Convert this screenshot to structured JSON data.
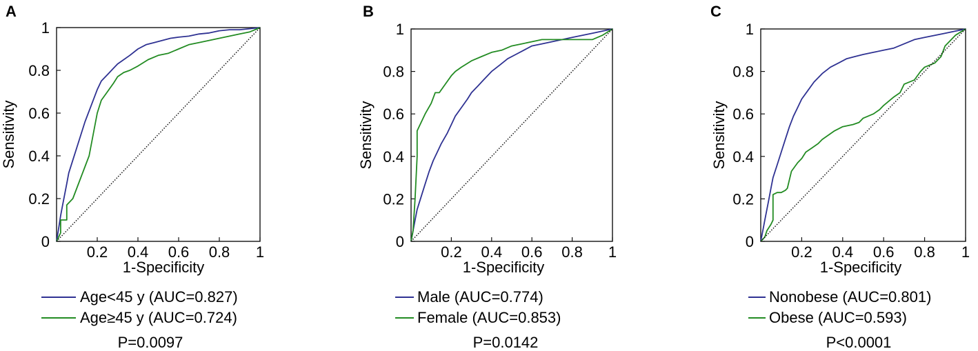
{
  "chart_data": [
    {
      "type": "line",
      "panel_label": "A",
      "xlabel": "1-Specificity",
      "ylabel": "Sensitivity",
      "xlim": [
        0,
        1
      ],
      "ylim": [
        0,
        1
      ],
      "x_ticks": [
        "0.2",
        "0.4",
        "0.6",
        "0.8",
        "1"
      ],
      "y_ticks": [
        "0",
        "0.2",
        "0.4",
        "0.6",
        "0.8",
        "1"
      ],
      "grid": false,
      "legend_position": "bottom",
      "series": [
        {
          "name": "Age<45 y (AUC=0.827)",
          "color": "#2e3192",
          "x": [
            0,
            0.01,
            0.02,
            0.03,
            0.04,
            0.05,
            0.06,
            0.08,
            0.1,
            0.12,
            0.14,
            0.16,
            0.18,
            0.2,
            0.22,
            0.25,
            0.28,
            0.3,
            0.33,
            0.36,
            0.4,
            0.44,
            0.48,
            0.52,
            0.56,
            0.6,
            0.65,
            0.7,
            0.75,
            0.8,
            0.85,
            0.9,
            0.95,
            1.0
          ],
          "y": [
            0,
            0.06,
            0.12,
            0.17,
            0.22,
            0.27,
            0.32,
            0.38,
            0.44,
            0.5,
            0.56,
            0.61,
            0.66,
            0.71,
            0.75,
            0.78,
            0.81,
            0.83,
            0.85,
            0.87,
            0.9,
            0.92,
            0.93,
            0.94,
            0.95,
            0.955,
            0.96,
            0.97,
            0.975,
            0.985,
            0.99,
            0.99,
            0.995,
            1.0
          ]
        },
        {
          "name": "Age≥45 y (AUC=0.724)",
          "color": "#228b22",
          "x": [
            0,
            0.02,
            0.02,
            0.05,
            0.05,
            0.08,
            0.1,
            0.12,
            0.14,
            0.16,
            0.18,
            0.2,
            0.22,
            0.25,
            0.28,
            0.3,
            0.33,
            0.36,
            0.4,
            0.45,
            0.5,
            0.55,
            0.6,
            0.65,
            0.7,
            0.75,
            0.8,
            0.85,
            0.9,
            0.95,
            1.0
          ],
          "y": [
            0,
            0.04,
            0.1,
            0.1,
            0.17,
            0.2,
            0.25,
            0.3,
            0.35,
            0.4,
            0.5,
            0.6,
            0.66,
            0.7,
            0.74,
            0.77,
            0.79,
            0.8,
            0.82,
            0.85,
            0.87,
            0.88,
            0.9,
            0.92,
            0.93,
            0.94,
            0.95,
            0.96,
            0.97,
            0.98,
            1.0
          ]
        },
        {
          "name": "chance",
          "color": "#111111",
          "dashed": true,
          "x": [
            0,
            1
          ],
          "y": [
            0,
            1
          ]
        }
      ],
      "legend": {
        "entries": [
          "Age<45 y (AUC=0.827)",
          "Age≥45 y (AUC=0.724)"
        ],
        "p_value": "P=0.0097"
      }
    },
    {
      "type": "line",
      "panel_label": "B",
      "xlabel": "1-Specificity",
      "ylabel": "Sensitivity",
      "xlim": [
        0,
        1
      ],
      "ylim": [
        0,
        1
      ],
      "x_ticks": [
        "0.2",
        "0.4",
        "0.6",
        "0.8",
        "1"
      ],
      "y_ticks": [
        "0",
        "0.2",
        "0.4",
        "0.6",
        "0.8",
        "1"
      ],
      "grid": false,
      "legend_position": "bottom",
      "series": [
        {
          "name": "Male (AUC=0.774)",
          "color": "#2e3192",
          "x": [
            0,
            0.01,
            0.02,
            0.03,
            0.05,
            0.07,
            0.09,
            0.11,
            0.13,
            0.15,
            0.18,
            0.2,
            0.22,
            0.25,
            0.28,
            0.3,
            0.33,
            0.36,
            0.4,
            0.44,
            0.48,
            0.52,
            0.56,
            0.6,
            0.65,
            0.7,
            0.75,
            0.8,
            0.85,
            0.9,
            0.95,
            1.0
          ],
          "y": [
            0,
            0.05,
            0.1,
            0.15,
            0.21,
            0.27,
            0.33,
            0.38,
            0.42,
            0.46,
            0.51,
            0.55,
            0.59,
            0.63,
            0.67,
            0.7,
            0.73,
            0.76,
            0.8,
            0.83,
            0.86,
            0.88,
            0.9,
            0.92,
            0.93,
            0.94,
            0.95,
            0.96,
            0.97,
            0.98,
            0.99,
            1.0
          ]
        },
        {
          "name": "Female (AUC=0.853)",
          "color": "#228b22",
          "x": [
            0,
            0.01,
            0.02,
            0.03,
            0.03,
            0.05,
            0.07,
            0.1,
            0.12,
            0.14,
            0.17,
            0.2,
            0.22,
            0.25,
            0.3,
            0.35,
            0.4,
            0.45,
            0.5,
            0.55,
            0.6,
            0.65,
            0.7,
            0.8,
            0.9,
            0.95,
            1.0
          ],
          "y": [
            0,
            0.05,
            0.2,
            0.4,
            0.52,
            0.56,
            0.6,
            0.65,
            0.7,
            0.7,
            0.74,
            0.78,
            0.8,
            0.82,
            0.85,
            0.87,
            0.89,
            0.9,
            0.92,
            0.93,
            0.94,
            0.95,
            0.95,
            0.95,
            0.95,
            0.97,
            1.0
          ]
        },
        {
          "name": "chance",
          "color": "#111111",
          "dashed": true,
          "x": [
            0,
            1
          ],
          "y": [
            0,
            1
          ]
        }
      ],
      "legend": {
        "entries": [
          "Male (AUC=0.774)",
          "Female (AUC=0.853)"
        ],
        "p_value": "P=0.0142"
      }
    },
    {
      "type": "line",
      "panel_label": "C",
      "xlabel": "1-Specificity",
      "ylabel": "Sensitivity",
      "xlim": [
        0,
        1
      ],
      "ylim": [
        0,
        1
      ],
      "x_ticks": [
        "0.2",
        "0.4",
        "0.6",
        "0.8",
        "1"
      ],
      "y_ticks": [
        "0",
        "0.2",
        "0.4",
        "0.6",
        "0.8",
        "1"
      ],
      "grid": false,
      "legend_position": "bottom",
      "series": [
        {
          "name": "Nonobese (AUC=0.801)",
          "color": "#2e3192",
          "x": [
            0,
            0.01,
            0.02,
            0.03,
            0.04,
            0.05,
            0.06,
            0.08,
            0.1,
            0.12,
            0.14,
            0.16,
            0.18,
            0.2,
            0.23,
            0.26,
            0.3,
            0.34,
            0.38,
            0.42,
            0.46,
            0.5,
            0.55,
            0.6,
            0.65,
            0.7,
            0.75,
            0.8,
            0.85,
            0.9,
            0.95,
            1.0
          ],
          "y": [
            0,
            0.05,
            0.1,
            0.15,
            0.2,
            0.25,
            0.3,
            0.36,
            0.42,
            0.48,
            0.54,
            0.59,
            0.63,
            0.67,
            0.71,
            0.75,
            0.79,
            0.82,
            0.84,
            0.86,
            0.87,
            0.88,
            0.89,
            0.9,
            0.91,
            0.93,
            0.95,
            0.96,
            0.97,
            0.98,
            0.99,
            1.0
          ]
        },
        {
          "name": "Obese (AUC=0.593)",
          "color": "#228b22",
          "x": [
            0,
            0.02,
            0.03,
            0.05,
            0.06,
            0.06,
            0.08,
            0.1,
            0.12,
            0.13,
            0.15,
            0.18,
            0.2,
            0.22,
            0.25,
            0.28,
            0.3,
            0.33,
            0.36,
            0.4,
            0.45,
            0.48,
            0.5,
            0.55,
            0.58,
            0.6,
            0.65,
            0.68,
            0.7,
            0.75,
            0.78,
            0.8,
            0.85,
            0.88,
            0.9,
            0.95,
            1.0
          ],
          "y": [
            0,
            0.02,
            0.05,
            0.08,
            0.1,
            0.22,
            0.23,
            0.23,
            0.24,
            0.25,
            0.33,
            0.37,
            0.39,
            0.42,
            0.44,
            0.46,
            0.48,
            0.5,
            0.52,
            0.54,
            0.55,
            0.56,
            0.58,
            0.6,
            0.62,
            0.64,
            0.68,
            0.7,
            0.74,
            0.76,
            0.8,
            0.82,
            0.84,
            0.87,
            0.92,
            0.97,
            1.0
          ]
        },
        {
          "name": "chance",
          "color": "#111111",
          "dashed": true,
          "x": [
            0,
            1
          ],
          "y": [
            0,
            1
          ]
        }
      ],
      "legend": {
        "entries": [
          "Nonobese (AUC=0.801)",
          "Obese (AUC=0.593)"
        ],
        "p_value": "P<0.0001"
      }
    }
  ]
}
